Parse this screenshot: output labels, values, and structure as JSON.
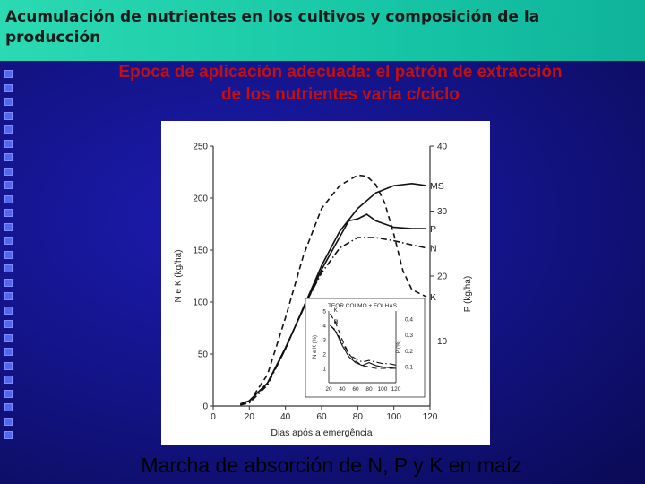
{
  "slide": {
    "title": "Acumulación de nutrientes en los cultivos y  composición de la producción",
    "subtitle_line1": "Epoca de aplicación adecuada: el patrón de extracción",
    "subtitle_line2": "de los nutrientes varia c/ciclo",
    "caption": "Marcha de absorción de N, P y K en maíz",
    "colors": {
      "title_bar": "#1fcfae",
      "background": "#1a1a8c",
      "subtitle": "#c01010"
    }
  },
  "chart_data": {
    "type": "line",
    "xlabel": "Dias após a emergência",
    "ylabel_left": "N e K (kg/ha)",
    "ylabel_right": "P (kg/ha)",
    "xlim": [
      0,
      120
    ],
    "ylim_left": [
      0,
      250
    ],
    "ylim_right": [
      0,
      40
    ],
    "x_ticks": [
      "0",
      "20",
      "40",
      "60",
      "80",
      "100",
      "120"
    ],
    "y_left_ticks": [
      "0",
      "50",
      "100",
      "150",
      "200",
      "250"
    ],
    "y_right_ticks": [
      "10",
      "20",
      "30",
      "40"
    ],
    "series": [
      {
        "name": "MS",
        "axis": "left",
        "style": "solid",
        "points": [
          [
            15,
            2
          ],
          [
            20,
            5
          ],
          [
            30,
            22
          ],
          [
            40,
            55
          ],
          [
            50,
            95
          ],
          [
            60,
            135
          ],
          [
            70,
            168
          ],
          [
            80,
            190
          ],
          [
            90,
            205
          ],
          [
            100,
            212
          ],
          [
            110,
            214
          ],
          [
            118,
            212
          ]
        ]
      },
      {
        "name": "P",
        "axis": "right",
        "style": "solid",
        "points": [
          [
            15,
            0.3
          ],
          [
            20,
            0.8
          ],
          [
            30,
            3.5
          ],
          [
            40,
            9
          ],
          [
            50,
            15
          ],
          [
            60,
            21
          ],
          [
            70,
            26
          ],
          [
            75,
            28.5
          ],
          [
            80,
            28.8
          ],
          [
            85,
            29.5
          ],
          [
            90,
            28.5
          ],
          [
            100,
            27.5
          ],
          [
            110,
            27.3
          ],
          [
            118,
            27.3
          ]
        ]
      },
      {
        "name": "N",
        "axis": "left",
        "style": "dash-dot",
        "points": [
          [
            15,
            1
          ],
          [
            20,
            3
          ],
          [
            30,
            20
          ],
          [
            40,
            55
          ],
          [
            50,
            95
          ],
          [
            60,
            128
          ],
          [
            70,
            152
          ],
          [
            80,
            162
          ],
          [
            90,
            162
          ],
          [
            100,
            159
          ],
          [
            110,
            155
          ],
          [
            118,
            152
          ]
        ]
      },
      {
        "name": "K",
        "axis": "left",
        "style": "dashed",
        "points": [
          [
            15,
            1
          ],
          [
            20,
            4
          ],
          [
            30,
            30
          ],
          [
            40,
            85
          ],
          [
            50,
            145
          ],
          [
            60,
            190
          ],
          [
            70,
            212
          ],
          [
            80,
            222
          ],
          [
            85,
            221
          ],
          [
            90,
            213
          ],
          [
            95,
            195
          ],
          [
            100,
            165
          ],
          [
            105,
            130
          ],
          [
            110,
            112
          ],
          [
            118,
            105
          ]
        ]
      }
    ],
    "inset": {
      "title": "TEOR COLMO + FOLHAS",
      "ylabel_left": "N e K (%)",
      "ylabel_right": "P (%)",
      "x_ticks": [
        "20",
        "40",
        "60",
        "80",
        "100",
        "120"
      ],
      "y_left_ticks": [
        "1",
        "2",
        "3",
        "4",
        "5"
      ],
      "y_right_ticks": [
        "0.1",
        "0.2",
        "0.3",
        "0.4"
      ],
      "xlim": [
        20,
        120
      ],
      "ylim_left": [
        0,
        5
      ],
      "ylim_right": [
        0,
        0.45
      ],
      "series": [
        {
          "name": "N",
          "axis": "left",
          "style": "solid",
          "points": [
            [
              22,
              4.0
            ],
            [
              30,
              3.6
            ],
            [
              40,
              2.6
            ],
            [
              50,
              1.8
            ],
            [
              60,
              1.4
            ],
            [
              70,
              1.2
            ],
            [
              80,
              1.4
            ],
            [
              90,
              1.2
            ],
            [
              100,
              1.1
            ],
            [
              110,
              1.05
            ],
            [
              120,
              1.0
            ]
          ]
        },
        {
          "name": "K",
          "axis": "left",
          "style": "dashed",
          "points": [
            [
              22,
              4.8
            ],
            [
              30,
              4.2
            ],
            [
              40,
              3.0
            ],
            [
              50,
              2.0
            ],
            [
              60,
              1.5
            ],
            [
              70,
              1.2
            ],
            [
              80,
              1.1
            ],
            [
              90,
              1.0
            ],
            [
              100,
              1.0
            ],
            [
              110,
              1.0
            ],
            [
              120,
              1.0
            ]
          ]
        },
        {
          "name": "P",
          "axis": "right",
          "style": "dash-dot",
          "points": [
            [
              22,
              0.36
            ],
            [
              30,
              0.33
            ],
            [
              40,
              0.25
            ],
            [
              50,
              0.18
            ],
            [
              60,
              0.15
            ],
            [
              70,
              0.13
            ],
            [
              80,
              0.14
            ],
            [
              90,
              0.13
            ],
            [
              100,
              0.12
            ],
            [
              110,
              0.12
            ],
            [
              120,
              0.11
            ]
          ]
        }
      ]
    }
  }
}
